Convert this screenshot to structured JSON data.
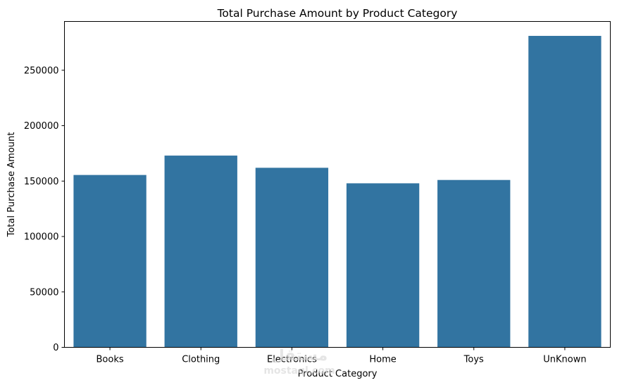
{
  "chart_data": {
    "type": "bar",
    "title": "Total Purchase Amount by Product Category",
    "xlabel": "Product Category",
    "ylabel": "Total Purchase Amount",
    "categories": [
      "Books",
      "Clothing",
      "Electronics",
      "Home",
      "Toys",
      "UnKnown"
    ],
    "values": [
      155500,
      173000,
      162000,
      148000,
      151000,
      281000
    ],
    "ylim": [
      0,
      294000
    ],
    "yticks": [
      0,
      50000,
      100000,
      150000,
      200000,
      250000
    ],
    "ytick_labels": [
      "0",
      "50000",
      "100000",
      "150000",
      "200000",
      "250000"
    ],
    "bar_color": "#3274a1",
    "grid": false,
    "legend": "none"
  },
  "watermark": {
    "logo_text": "مستقل",
    "sub_text": "mostaql.com"
  }
}
